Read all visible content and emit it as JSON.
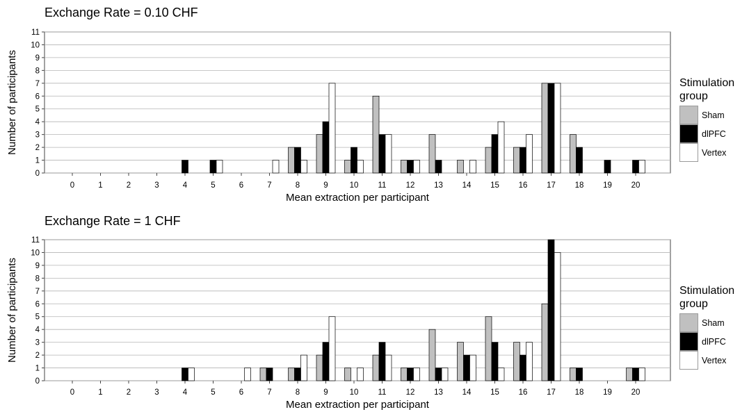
{
  "chart_data": [
    {
      "type": "bar",
      "title": "Exchange Rate = 0.10 CHF",
      "xlabel": "Mean extraction per participant",
      "ylabel": "Number of participants",
      "ylim": [
        0,
        11
      ],
      "grid": true,
      "categories": [
        "0",
        "1",
        "2",
        "3",
        "4",
        "5",
        "6",
        "7",
        "8",
        "9",
        "10",
        "11",
        "12",
        "13",
        "14",
        "15",
        "16",
        "17",
        "18",
        "19",
        "20"
      ],
      "series": [
        {
          "name": "Sham",
          "color": "#c0c0c0",
          "values": [
            0,
            0,
            0,
            0,
            0,
            0,
            0,
            0,
            2,
            3,
            1,
            6,
            1,
            3,
            1,
            2,
            2,
            7,
            3,
            0,
            0
          ]
        },
        {
          "name": "dlPFC",
          "color": "#000000",
          "values": [
            0,
            0,
            0,
            0,
            1,
            1,
            0,
            0,
            2,
            4,
            2,
            3,
            1,
            1,
            0,
            3,
            2,
            7,
            2,
            1,
            1
          ]
        },
        {
          "name": "Vertex",
          "color": "#ffffff",
          "values": [
            0,
            0,
            0,
            0,
            0,
            1,
            0,
            1,
            1,
            7,
            1,
            3,
            1,
            0,
            1,
            4,
            3,
            7,
            0,
            0,
            1
          ]
        }
      ],
      "legend": {
        "title_line1": "Stimulation",
        "title_line2": "group",
        "placement": "right"
      }
    },
    {
      "type": "bar",
      "title": "Exchange Rate = 1 CHF",
      "xlabel": "Mean extraction per participant",
      "ylabel": "Number of participants",
      "ylim": [
        0,
        11
      ],
      "grid": true,
      "categories": [
        "0",
        "1",
        "2",
        "3",
        "4",
        "5",
        "6",
        "7",
        "8",
        "9",
        "10",
        "11",
        "12",
        "13",
        "14",
        "15",
        "16",
        "17",
        "18",
        "19",
        "20"
      ],
      "series": [
        {
          "name": "Sham",
          "color": "#c0c0c0",
          "values": [
            0,
            0,
            0,
            0,
            0,
            0,
            0,
            1,
            1,
            2,
            1,
            2,
            1,
            4,
            3,
            5,
            3,
            6,
            1,
            0,
            1
          ]
        },
        {
          "name": "dlPFC",
          "color": "#000000",
          "values": [
            0,
            0,
            0,
            0,
            1,
            0,
            0,
            1,
            1,
            3,
            0,
            3,
            1,
            1,
            2,
            3,
            2,
            11,
            1,
            0,
            1
          ]
        },
        {
          "name": "Vertex",
          "color": "#ffffff",
          "values": [
            0,
            0,
            0,
            0,
            1,
            0,
            1,
            0,
            2,
            5,
            1,
            2,
            1,
            1,
            2,
            1,
            3,
            10,
            0,
            0,
            1
          ]
        }
      ],
      "legend": {
        "title_line1": "Stimulation",
        "title_line2": "group",
        "placement": "right"
      }
    }
  ]
}
